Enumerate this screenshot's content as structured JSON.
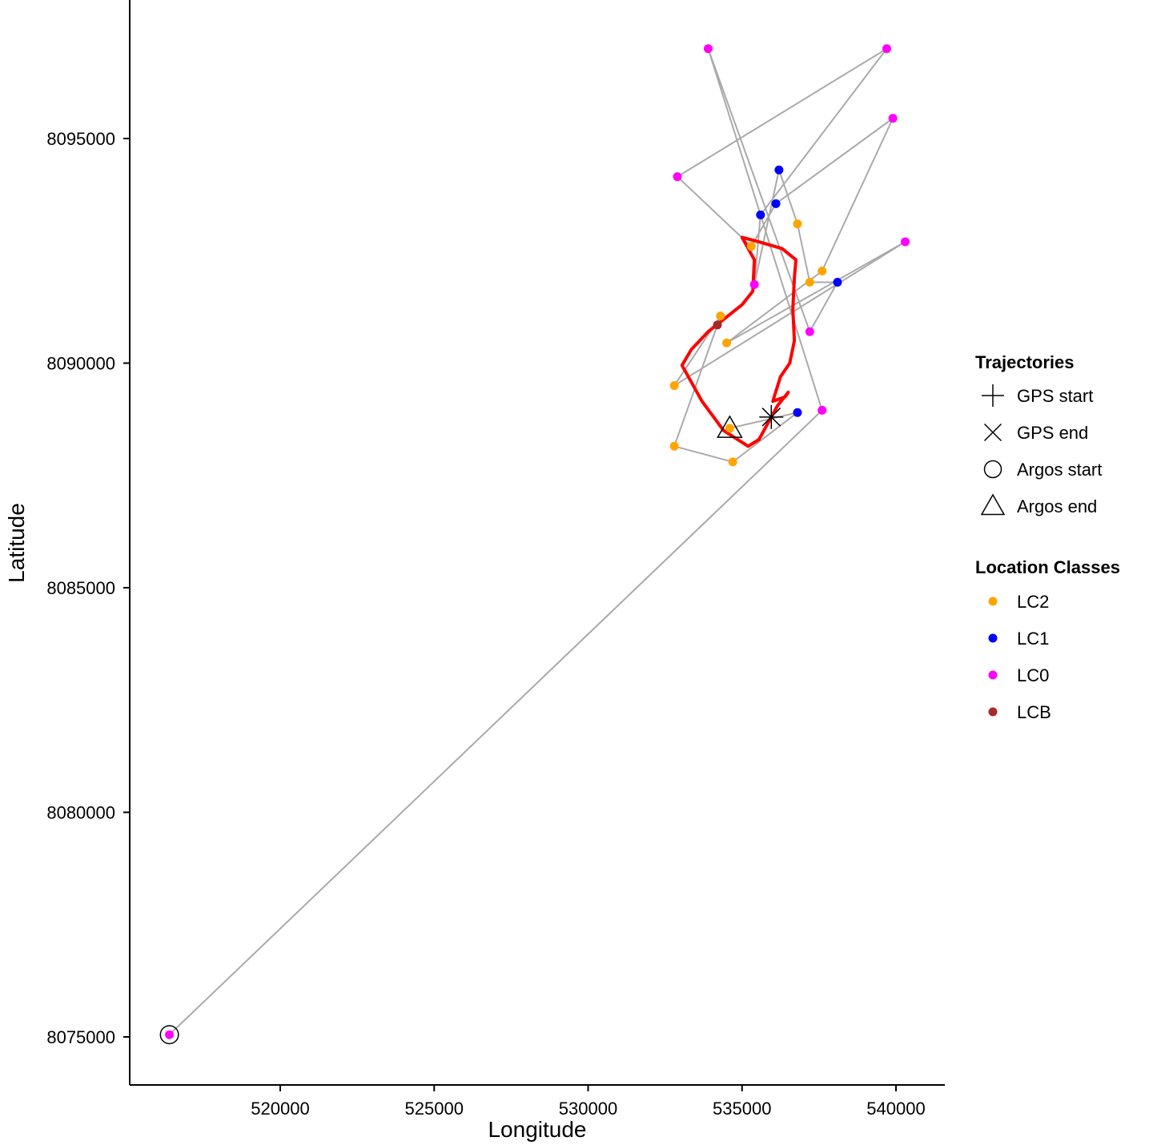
{
  "chart_data": {
    "type": "scatter",
    "xlabel": "Longitude",
    "ylabel": "Latitude",
    "xlim": [
      511300,
      537700
    ],
    "ylim": [
      8073950,
      8097800
    ],
    "x_ticks": [
      520000,
      525000,
      530000,
      535000,
      540000
    ],
    "y_ticks": [
      8075000,
      8080000,
      8085000,
      8090000,
      8095000
    ],
    "x_tick_labels": [
      "520000",
      "525000",
      "530000",
      "535000",
      "540000"
    ],
    "y_tick_labels": [
      "8075000",
      "8080000",
      "8085000",
      "8090000",
      "8095000"
    ],
    "grid": false,
    "legend_position": "right",
    "colors": {
      "argos_track": "#aaaaaa",
      "gps_track": "#ff0000",
      "LC2": "#ffa500",
      "LC1": "#0000ff",
      "LC0": "#ff00ff",
      "LCB": "#a52a2a",
      "marker": "#000000"
    },
    "argos_track": [
      {
        "x": 516400,
        "y": 8075050,
        "lc": "LC0"
      },
      {
        "x": 537600,
        "y": 8088950,
        "lc": "LC0"
      },
      {
        "x": 533900,
        "y": 8097000,
        "lc": "LC0"
      },
      {
        "x": 537200,
        "y": 8090700,
        "lc": "LC0"
      },
      {
        "x": 538100,
        "y": 8091800,
        "lc": "LC1"
      },
      {
        "x": 537200,
        "y": 8091800,
        "lc": "LC2"
      },
      {
        "x": 536800,
        "y": 8093100,
        "lc": "LC2"
      },
      {
        "x": 536200,
        "y": 8094300,
        "lc": "LC1"
      },
      {
        "x": 535400,
        "y": 8091750,
        "lc": "LC0"
      },
      {
        "x": 535600,
        "y": 8093300,
        "lc": "LC1"
      },
      {
        "x": 539700,
        "y": 8097000,
        "lc": "LC0"
      },
      {
        "x": 532900,
        "y": 8094150,
        "lc": "LC0"
      },
      {
        "x": 535300,
        "y": 8092600,
        "lc": "LC2"
      },
      {
        "x": 536100,
        "y": 8093550,
        "lc": "LC1"
      },
      {
        "x": 539900,
        "y": 8095450,
        "lc": "LC0"
      },
      {
        "x": 537600,
        "y": 8092050,
        "lc": "LC2"
      },
      {
        "x": 534500,
        "y": 8090450,
        "lc": "LC2"
      },
      {
        "x": 540300,
        "y": 8092700,
        "lc": "LC0"
      },
      {
        "x": 532800,
        "y": 8089500,
        "lc": "LC2"
      },
      {
        "x": 534300,
        "y": 8091050,
        "lc": "LC2"
      },
      {
        "x": 534200,
        "y": 8090850,
        "lc": "LCB"
      },
      {
        "x": 532800,
        "y": 8088150,
        "lc": "LC2"
      },
      {
        "x": 534700,
        "y": 8087800,
        "lc": "LC2"
      },
      {
        "x": 536800,
        "y": 8088900,
        "lc": "LC1"
      },
      {
        "x": 534600,
        "y": 8088550,
        "lc": "LC2"
      }
    ],
    "gps_track": [
      [
        535950,
        8088800
      ],
      [
        536150,
        8089050
      ],
      [
        536500,
        8089350
      ],
      [
        536400,
        8089250
      ],
      [
        536000,
        8089150
      ],
      [
        536250,
        8089700
      ],
      [
        536550,
        8090000
      ],
      [
        536700,
        8090500
      ],
      [
        536650,
        8091200
      ],
      [
        536700,
        8091900
      ],
      [
        536750,
        8092300
      ],
      [
        536300,
        8092550
      ],
      [
        535550,
        8092700
      ],
      [
        535000,
        8092800
      ],
      [
        535400,
        8092300
      ],
      [
        535350,
        8091600
      ],
      [
        535000,
        8091300
      ],
      [
        534450,
        8091000
      ],
      [
        533900,
        8090700
      ],
      [
        533350,
        8090300
      ],
      [
        533050,
        8089950
      ],
      [
        533700,
        8089150
      ],
      [
        534400,
        8088500
      ],
      [
        535200,
        8088150
      ],
      [
        535550,
        8088300
      ],
      [
        535950,
        8088800
      ]
    ],
    "gps_start": {
      "x": 535950,
      "y": 8088800
    },
    "gps_end": {
      "x": 535950,
      "y": 8088800
    },
    "argos_start": {
      "x": 516400,
      "y": 8075050
    },
    "argos_end": {
      "x": 534600,
      "y": 8088550
    },
    "legends": [
      {
        "title": "Trajectories",
        "items": [
          {
            "label": "GPS start",
            "shape": "plus"
          },
          {
            "label": "GPS end",
            "shape": "cross"
          },
          {
            "label": "Argos start",
            "shape": "circle"
          },
          {
            "label": "Argos end",
            "shape": "triangle"
          }
        ]
      },
      {
        "title": "Location Classes",
        "items": [
          {
            "label": "LC2",
            "key": "LC2"
          },
          {
            "label": "LC1",
            "key": "LC1"
          },
          {
            "label": "LC0",
            "key": "LC0"
          },
          {
            "label": "LCB",
            "key": "LCB"
          }
        ]
      }
    ]
  }
}
